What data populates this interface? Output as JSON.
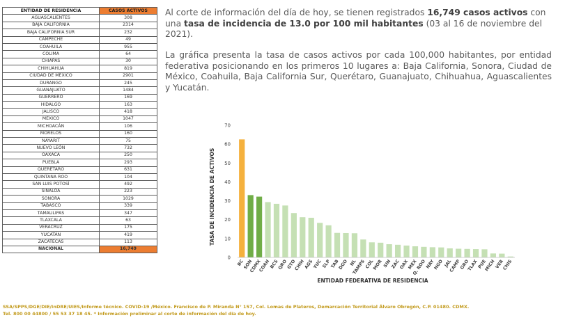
{
  "table": {
    "headers": [
      "ENTIDAD DE RESIDENCIA",
      "CASOS ACTIVOS"
    ],
    "rows": [
      [
        "AGUASCALIENTES",
        "308"
      ],
      [
        "BAJA CALIFORNIA",
        "2314"
      ],
      [
        "BAJA CALIFORNIA SUR",
        "232"
      ],
      [
        "CAMPECHE",
        "49"
      ],
      [
        "COAHUILA",
        "955"
      ],
      [
        "COLIMA",
        "64"
      ],
      [
        "CHIAPAS",
        "30"
      ],
      [
        "CHIHUAHUA",
        "819"
      ],
      [
        "CIUDAD DE MÉXICO",
        "2901"
      ],
      [
        "DURANGO",
        "245"
      ],
      [
        "GUANAJUATO",
        "1484"
      ],
      [
        "GUERRERO",
        "169"
      ],
      [
        "HIDALGO",
        "163"
      ],
      [
        "JALISCO",
        "418"
      ],
      [
        "MÉXICO",
        "1047"
      ],
      [
        "MICHOACÁN",
        "106"
      ],
      [
        "MORELOS",
        "160"
      ],
      [
        "NAYARIT",
        "75"
      ],
      [
        "NUEVO LEÓN",
        "732"
      ],
      [
        "OAXACA",
        "250"
      ],
      [
        "PUEBLA",
        "293"
      ],
      [
        "QUERÉTARO",
        "631"
      ],
      [
        "QUINTANA ROO",
        "104"
      ],
      [
        "SAN LUIS POTOSÍ",
        "492"
      ],
      [
        "SINALOA",
        "223"
      ],
      [
        "SONORA",
        "1029"
      ],
      [
        "TABASCO",
        "339"
      ],
      [
        "TAMAULIPAS",
        "347"
      ],
      [
        "TLAXCALA",
        "63"
      ],
      [
        "VERACRUZ",
        "175"
      ],
      [
        "YUCATÁN",
        "419"
      ],
      [
        "ZACATECAS",
        "113"
      ]
    ],
    "total": [
      "NACIONAL",
      "16,749"
    ]
  },
  "paragraph1": {
    "t1": "Al corte de información del día de hoy, se tienen registrados ",
    "b1": "16,749 casos activos",
    "t2": " con una ",
    "b2": "tasa de incidencia de 13.0 por 100 mil habitantes",
    "t3": " (03 al 16 de noviembre del 2021)."
  },
  "paragraph2": "La gráfica presenta la tasa de casos activos por cada 100,000 habitantes, por entidad federativa posicionando en los primeros 10 lugares a: Baja California, Sonora, Ciudad de México, Coahuila, Baja California Sur, Querétaro, Guanajuato, Chihuahua, Aguascalientes y Yucatán.",
  "colors": {
    "top": "#f5b13d",
    "highlight": "#70ad47",
    "rest": "#c5e0b4",
    "orange_header": "#ec7d31",
    "footer_text": "#c29a1c"
  },
  "chart_data": {
    "type": "bar",
    "xlabel": "ENTIDAD FEDERATIVA DE RESIDENCIA",
    "ylabel": "TASA DE INCIDENCIA DE ACTIVOS",
    "ylim": [
      0,
      70
    ],
    "yticks": [
      0,
      10,
      20,
      30,
      40,
      50,
      60,
      70
    ],
    "grid": false,
    "categories": [
      "BC",
      "SON",
      "CDMX",
      "COAH",
      "BCS",
      "QRO",
      "GTO",
      "CHIH",
      "AGS",
      "YUC",
      "SLP",
      "TAB",
      "DGO",
      "NL",
      "TAMPS",
      "COL",
      "MOR",
      "SIN",
      "ZAC",
      "OAX",
      "MEX",
      "Q. ROO",
      "NAY",
      "HGO",
      "JAL",
      "CAMP",
      "GRO",
      "TLAX",
      "PUE",
      "MICH",
      "VER",
      "CHIS"
    ],
    "values": [
      62.5,
      33.0,
      32.2,
      29.3,
      28.4,
      27.5,
      23.5,
      21.3,
      21.0,
      18.3,
      17.0,
      13.0,
      12.9,
      12.8,
      9.5,
      8.0,
      7.8,
      7.0,
      6.7,
      6.3,
      5.9,
      5.6,
      5.4,
      5.3,
      4.8,
      4.6,
      4.5,
      4.4,
      4.3,
      2.1,
      2.0,
      0.5
    ],
    "bar_colors": [
      "top",
      "highlight",
      "highlight",
      "rest",
      "rest",
      "rest",
      "rest",
      "rest",
      "rest",
      "rest",
      "rest",
      "rest",
      "rest",
      "rest",
      "rest",
      "rest",
      "rest",
      "rest",
      "rest",
      "rest",
      "rest",
      "rest",
      "rest",
      "rest",
      "rest",
      "rest",
      "rest",
      "rest",
      "rest",
      "rest",
      "rest",
      "rest"
    ]
  },
  "footer": {
    "line1": "SSA/SPPS/DGE/DIE/InDRE/UIES/Informe técnico. COVID-19 /México. Francisco de P. Miranda N° 157, Col. Lomas de Plateros, Demarcación Territorial Álvaro Obregón, C.P. 01480. CDMX.",
    "line2": "Tel. 800 00 44800 / 55 53 37 18 45. * Información preliminar al corte de información del día de hoy."
  }
}
